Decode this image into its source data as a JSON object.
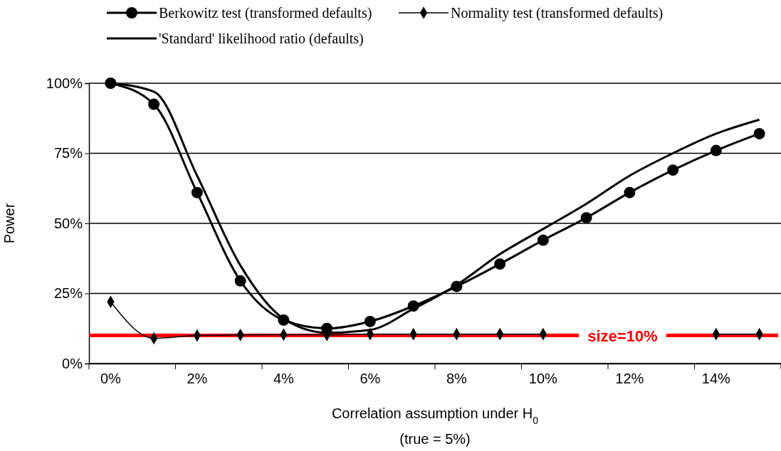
{
  "chart_data": {
    "type": "line",
    "xlabel": "Correlation assumption under H$_{0}$",
    "ylabel": "Power",
    "annotations": [
      "(true = 5%)"
    ],
    "categories": [
      "0%",
      null,
      "2%",
      null,
      "4%",
      null,
      "6%",
      null,
      "8%",
      null,
      "10%",
      null,
      "12%",
      null,
      "14%",
      null
    ],
    "ylim": [
      0,
      100
    ],
    "yticks": [
      {
        "value": 0,
        "label": "0%"
      },
      {
        "value": 25,
        "label": "25%"
      },
      {
        "value": 50,
        "label": "50%"
      },
      {
        "value": 75,
        "label": "75%"
      },
      {
        "value": 100,
        "label": "100%"
      }
    ],
    "grid": "y",
    "legend": "top",
    "line_style": "solid",
    "series": [
      {
        "name": "Berkowitz test (transformed defaults)",
        "color": "#000000",
        "marker": "circle",
        "values": [
          100,
          92.5,
          61,
          29.5,
          15.5,
          12.5,
          15,
          20.5,
          27.5,
          35.5,
          44,
          52,
          61,
          69,
          76,
          82
        ]
      },
      {
        "name": "Normality test (transformed defaults)",
        "color": "#000000",
        "marker": "diamond",
        "values": [
          22,
          9,
          10,
          10.2,
          10.3,
          10.2,
          10.5,
          10.5,
          10.5,
          10.5,
          10.5,
          null,
          null,
          null,
          10.5,
          10.5
        ]
      },
      {
        "name": "'Standard' likelihood ratio (defaults)",
        "color": "#000000",
        "marker": "none",
        "values": [
          100,
          97,
          67,
          35,
          16,
          11,
          12,
          19.5,
          28,
          39,
          48,
          57,
          67,
          75,
          82,
          87
        ]
      }
    ],
    "ref_lines": [
      {
        "axis": "y",
        "value": 10,
        "label": "size=10%",
        "color": "#ff0000"
      }
    ]
  }
}
